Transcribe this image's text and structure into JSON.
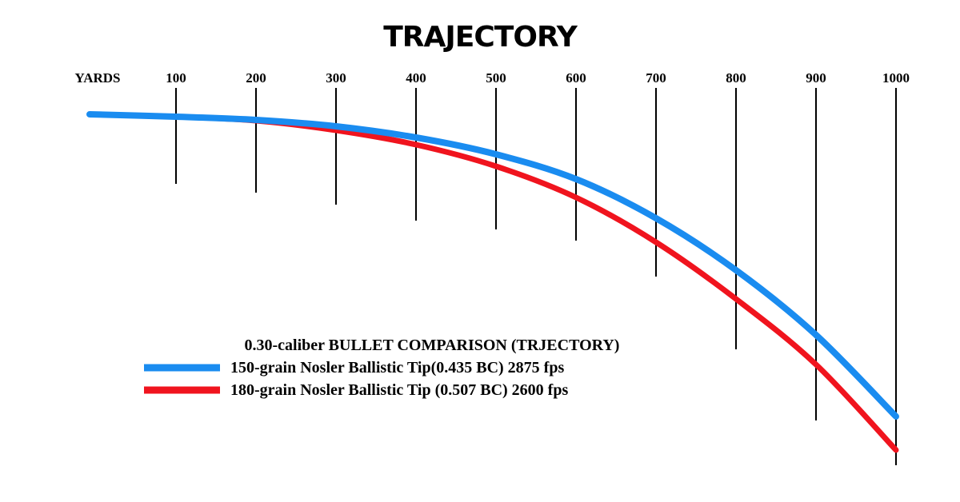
{
  "chart_data": {
    "type": "line",
    "title": "TRAJECTORY",
    "xlabel": "YARDS",
    "ylabel": "",
    "x": [
      0,
      100,
      200,
      300,
      400,
      500,
      600,
      700,
      800,
      900,
      1000
    ],
    "x_ticks": [
      "100",
      "200",
      "300",
      "400",
      "500",
      "600",
      "700",
      "800",
      "900",
      "1000"
    ],
    "legend_title": "0.30-caliber BULLET COMPARISON (TRJECTORY)",
    "legend_placement": "bottom-center",
    "grid": false,
    "series": [
      {
        "name": "150-grain Nosler Ballistic Tip(0.435 BC) 2875 fps",
        "color": "#1a8cf0",
        "values": [
          0,
          -3,
          -7,
          -15,
          -29,
          -50,
          -81,
          -130,
          -195,
          -276,
          -378
        ]
      },
      {
        "name": "180-grain Nosler Ballistic Tip (0.507 BC) 2600 fps",
        "color": "#f0141e",
        "values": [
          0,
          -3,
          -8,
          -20,
          -38,
          -65,
          -104,
          -160,
          -231,
          -313,
          -420
        ]
      }
    ]
  }
}
